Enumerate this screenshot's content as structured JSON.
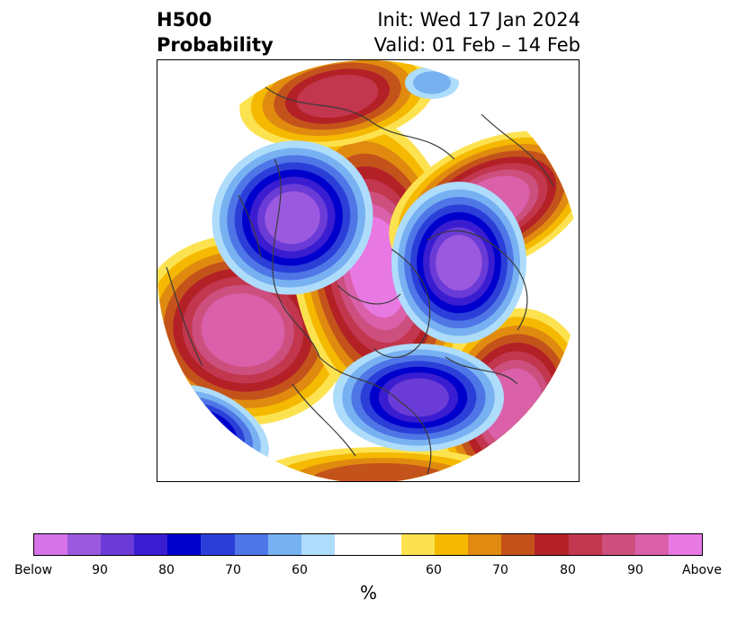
{
  "title": {
    "left_line1": "H500",
    "left_line2": "Probability",
    "right_line1": "Init: Wed 17 Jan 2024",
    "right_line2": "Valid: 01 Feb – 14 Feb"
  },
  "colorbar": {
    "unit": "%",
    "colors": [
      "#d673e9",
      "#9b59e0",
      "#6a3bd6",
      "#3a1dd0",
      "#0000cd",
      "#2b3fd8",
      "#4f76e6",
      "#78b1f2",
      "#aedcfb",
      "#ffffff",
      "#ffffff",
      "#fde24f",
      "#f4b900",
      "#e08b10",
      "#c4531b",
      "#b32127",
      "#c2364e",
      "#cc4f7e",
      "#da60aa",
      "#e879e2"
    ],
    "tick_labels": [
      "Below",
      "90",
      "80",
      "70",
      "60",
      "60",
      "70",
      "80",
      "90",
      "Above"
    ]
  },
  "chart_data": {
    "type": "heatmap",
    "title": "H500 Probability",
    "init": "Init: Wed 17 Jan 2024",
    "valid": "Valid: 01 Feb – 14 Feb",
    "colorbar_label": "%",
    "below_categories": [
      "Below",
      "90",
      "80",
      "70",
      "60"
    ],
    "above_categories": [
      "60",
      "70",
      "80",
      "90",
      "Above"
    ],
    "anomalies": [
      {
        "region": "northwest",
        "sign": "below",
        "peak": 90
      },
      {
        "region": "east",
        "sign": "below",
        "peak": 90
      },
      {
        "region": "south-central",
        "sign": "below",
        "peak": 90
      },
      {
        "region": "southwest-edge",
        "sign": "below",
        "peak": 80
      },
      {
        "region": "north-top",
        "sign": "above",
        "peak": 80
      },
      {
        "region": "west",
        "sign": "above",
        "peak": 90
      },
      {
        "region": "center-pole",
        "sign": "above",
        "peak": 90
      },
      {
        "region": "northeast",
        "sign": "above",
        "peak": 90
      },
      {
        "region": "southeast",
        "sign": "above",
        "peak": 90
      }
    ]
  }
}
